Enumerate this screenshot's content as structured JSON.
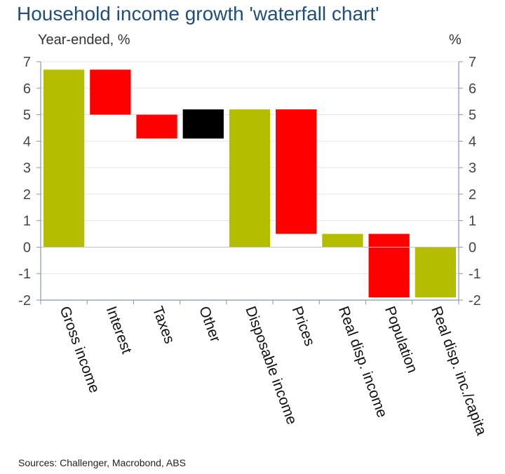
{
  "chart_data": {
    "type": "bar",
    "title": "Household income growth 'waterfall chart'",
    "ylabel_left": "Year-ended, %",
    "ylabel_right": "%",
    "source": "Sources: Challenger, Macrobond, ABS",
    "ylim": [
      -2,
      7
    ],
    "yticks": [
      -2,
      -1,
      0,
      1,
      2,
      3,
      4,
      5,
      6,
      7
    ],
    "grid": true,
    "categories": [
      "Gross income",
      "Interest",
      "Taxes",
      "Other",
      "Disposable income",
      "Prices",
      "Real disp. income",
      "Population",
      "Real disp. inc./capita"
    ],
    "bars": [
      {
        "category": "Gross income",
        "start": 0,
        "end": 6.7,
        "color": "#b5bd00"
      },
      {
        "category": "Interest",
        "start": 6.7,
        "end": 5.0,
        "color": "#ff0000"
      },
      {
        "category": "Taxes",
        "start": 5.0,
        "end": 4.1,
        "color": "#ff0000"
      },
      {
        "category": "Other",
        "start": 4.1,
        "end": 5.2,
        "color": "#000000"
      },
      {
        "category": "Disposable income",
        "start": 0,
        "end": 5.2,
        "color": "#b5bd00"
      },
      {
        "category": "Prices",
        "start": 5.2,
        "end": 0.5,
        "color": "#ff0000"
      },
      {
        "category": "Real disp. income",
        "start": 0,
        "end": 0.5,
        "color": "#b5bd00"
      },
      {
        "category": "Population",
        "start": 0.5,
        "end": -1.9,
        "color": "#ff0000"
      },
      {
        "category": "Real disp. inc./capita",
        "start": 0,
        "end": -1.9,
        "color": "#b5bd00"
      }
    ],
    "colors": {
      "positive_total": "#b5bd00",
      "decrease": "#ff0000",
      "other": "#000000",
      "axis": "#8496b0",
      "grid": "#e4e4e4"
    }
  }
}
